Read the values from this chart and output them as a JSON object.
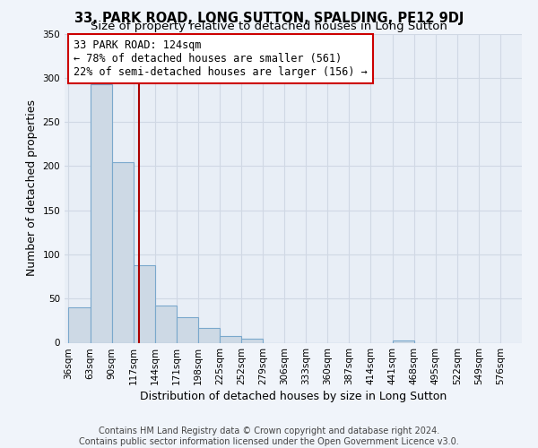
{
  "title": "33, PARK ROAD, LONG SUTTON, SPALDING, PE12 9DJ",
  "subtitle": "Size of property relative to detached houses in Long Sutton",
  "xlabel": "Distribution of detached houses by size in Long Sutton",
  "ylabel": "Number of detached properties",
  "bar_edges": [
    36,
    63,
    90,
    117,
    144,
    171,
    198,
    225,
    252,
    279,
    306,
    333,
    360,
    387,
    414,
    441,
    468,
    495,
    522,
    549,
    576
  ],
  "bar_heights": [
    40,
    293,
    204,
    88,
    42,
    29,
    17,
    8,
    5,
    0,
    0,
    0,
    0,
    0,
    0,
    3,
    0,
    0,
    0,
    0
  ],
  "bar_color": "#cdd9e5",
  "bar_edge_color": "#7aa8cc",
  "vline_x": 124,
  "vline_color": "#aa0000",
  "annotation_text": "33 PARK ROAD: 124sqm\n← 78% of detached houses are smaller (561)\n22% of semi-detached houses are larger (156) →",
  "annotation_border_color": "#cc0000",
  "ylim": [
    0,
    350
  ],
  "yticks": [
    0,
    50,
    100,
    150,
    200,
    250,
    300,
    350
  ],
  "tick_labels": [
    "36sqm",
    "63sqm",
    "90sqm",
    "117sqm",
    "144sqm",
    "171sqm",
    "198sqm",
    "225sqm",
    "252sqm",
    "279sqm",
    "306sqm",
    "333sqm",
    "360sqm",
    "387sqm",
    "414sqm",
    "441sqm",
    "468sqm",
    "495sqm",
    "522sqm",
    "549sqm",
    "576sqm"
  ],
  "footer_line1": "Contains HM Land Registry data © Crown copyright and database right 2024.",
  "footer_line2": "Contains public sector information licensed under the Open Government Licence v3.0.",
  "bg_color": "#f0f4fa",
  "plot_bg_color": "#e8eef6",
  "grid_color": "#d0d8e4",
  "title_fontsize": 10.5,
  "subtitle_fontsize": 9.5,
  "axis_label_fontsize": 9,
  "tick_fontsize": 7.5,
  "footer_fontsize": 7,
  "ann_fontsize": 8.5
}
